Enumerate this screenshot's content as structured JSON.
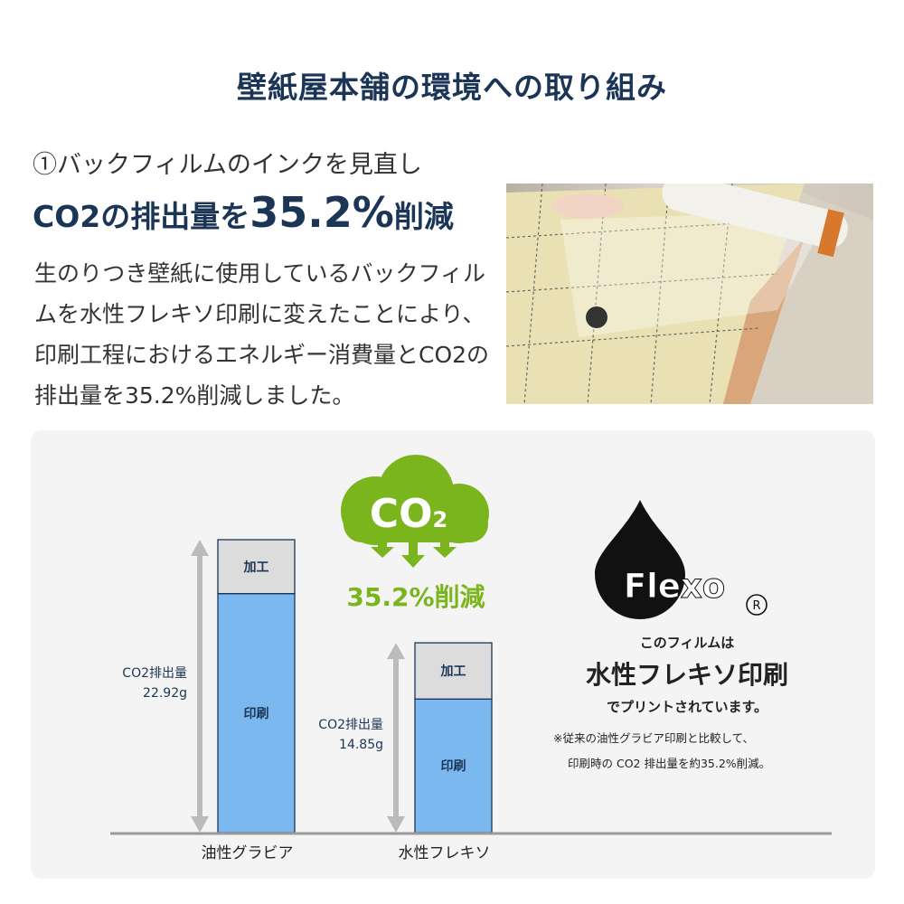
{
  "title": "壁紙屋本舗の環境への取り組み",
  "section": {
    "subtitle": "①バックフィルムのインクを見直し",
    "headline_pre": "CO2の排出量を",
    "headline_value": "35.2%",
    "headline_post": "削減",
    "body": "生のりつき壁紙に使用しているバックフィルムを水性フレキソ印刷に変えたことにより、印刷工程におけるエネルギー消費量とCO2の排出量を35.2%削減しました。"
  },
  "photo": {
    "label": "back-film-roll-photo"
  },
  "infographic": {
    "cloud_label": "CO",
    "cloud_subscript": "2",
    "reduction": "35.2%削減",
    "green": "#7ab51d",
    "flexo_logo": "Flexo",
    "registered": "®",
    "flexo_line1": "このフィルムは",
    "flexo_line2": "水性フレキソ印刷",
    "flexo_line3": "でプリントされています。",
    "note1": "※従来の油性グラビア印刷と比較して、",
    "note2": "印刷時の CO2 排出量を約35.2%削減。"
  },
  "chart_data": {
    "type": "bar",
    "stacked": true,
    "categories": [
      "油性グラビア",
      "水性フレキソ"
    ],
    "series": [
      {
        "name": "印刷",
        "values": [
          18.7,
          10.45
        ],
        "color": "#7cb8f0"
      },
      {
        "name": "加工",
        "values": [
          4.22,
          4.4
        ],
        "color": "#dcdcdc"
      }
    ],
    "totals": [
      22.92,
      14.85
    ],
    "total_labels": [
      [
        "CO2排出量",
        "22.92g"
      ],
      [
        "CO2排出量",
        "14.85g"
      ]
    ],
    "ylim": [
      0,
      22.92
    ]
  }
}
